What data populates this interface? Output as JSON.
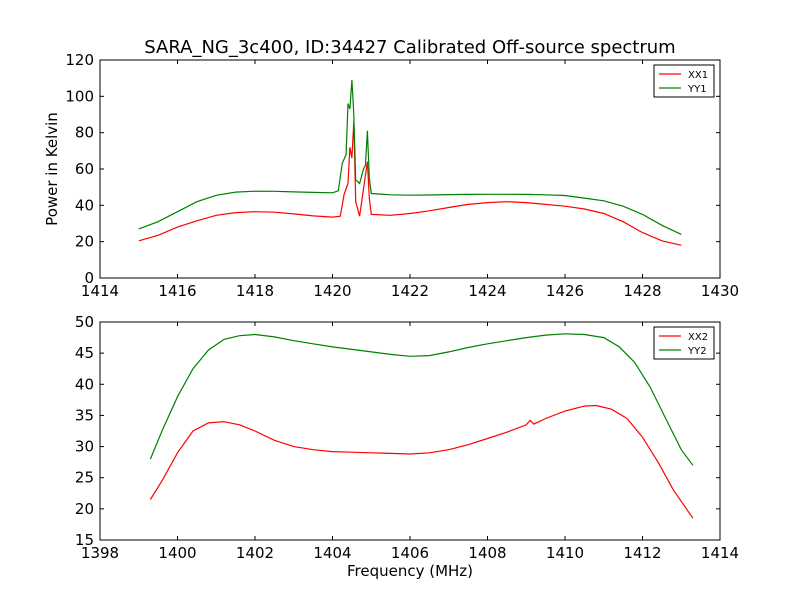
{
  "figure": {
    "title": "SARA_NG_3c400, ID:34427 Calibrated Off-source spectrum"
  },
  "chart_data": [
    {
      "type": "line",
      "title": "SARA_NG_3c400, ID:34427 Calibrated Off-source spectrum",
      "xlabel": "",
      "ylabel": "Power in Kelvin",
      "xlim": [
        1414,
        1430
      ],
      "ylim": [
        0,
        120
      ],
      "xticks": [
        1414,
        1416,
        1418,
        1420,
        1422,
        1424,
        1426,
        1428,
        1430
      ],
      "yticks": [
        0,
        20,
        40,
        60,
        80,
        100,
        120
      ],
      "grid": false,
      "legend_position": "top-right",
      "series": [
        {
          "name": "XX1",
          "color": "#ff0000",
          "points": [
            [
              1415.0,
              20.5
            ],
            [
              1415.5,
              23.5
            ],
            [
              1416.0,
              28.0
            ],
            [
              1416.5,
              31.5
            ],
            [
              1417.0,
              34.5
            ],
            [
              1417.5,
              36.0
            ],
            [
              1418.0,
              36.5
            ],
            [
              1418.5,
              36.2
            ],
            [
              1419.0,
              35.3
            ],
            [
              1419.5,
              34.2
            ],
            [
              1420.0,
              33.5
            ],
            [
              1420.2,
              34.0
            ],
            [
              1420.3,
              46.0
            ],
            [
              1420.4,
              52.0
            ],
            [
              1420.45,
              72.0
            ],
            [
              1420.5,
              66.0
            ],
            [
              1420.55,
              86.0
            ],
            [
              1420.6,
              42.0
            ],
            [
              1420.7,
              34.0
            ],
            [
              1420.8,
              49.0
            ],
            [
              1420.9,
              64.0
            ],
            [
              1420.95,
              44.0
            ],
            [
              1421.0,
              35.0
            ],
            [
              1421.5,
              34.5
            ],
            [
              1422.0,
              35.5
            ],
            [
              1422.5,
              37.0
            ],
            [
              1423.0,
              38.8
            ],
            [
              1423.5,
              40.5
            ],
            [
              1424.0,
              41.5
            ],
            [
              1424.5,
              42.0
            ],
            [
              1425.0,
              41.5
            ],
            [
              1425.5,
              40.5
            ],
            [
              1426.0,
              39.5
            ],
            [
              1426.5,
              38.0
            ],
            [
              1427.0,
              35.5
            ],
            [
              1427.5,
              31.0
            ],
            [
              1428.0,
              25.0
            ],
            [
              1428.5,
              20.5
            ],
            [
              1429.0,
              18.0
            ]
          ]
        },
        {
          "name": "YY1",
          "color": "#008000",
          "points": [
            [
              1415.0,
              27.0
            ],
            [
              1415.5,
              31.0
            ],
            [
              1416.0,
              36.5
            ],
            [
              1416.5,
              42.0
            ],
            [
              1417.0,
              45.5
            ],
            [
              1417.5,
              47.3
            ],
            [
              1418.0,
              47.8
            ],
            [
              1418.5,
              47.7
            ],
            [
              1419.0,
              47.4
            ],
            [
              1419.5,
              47.1
            ],
            [
              1420.0,
              46.9
            ],
            [
              1420.15,
              48.0
            ],
            [
              1420.25,
              63.0
            ],
            [
              1420.35,
              68.0
            ],
            [
              1420.4,
              96.0
            ],
            [
              1420.45,
              93.0
            ],
            [
              1420.5,
              109.0
            ],
            [
              1420.55,
              90.0
            ],
            [
              1420.6,
              54.0
            ],
            [
              1420.7,
              52.0
            ],
            [
              1420.8,
              60.0
            ],
            [
              1420.85,
              62.0
            ],
            [
              1420.9,
              81.0
            ],
            [
              1420.95,
              55.0
            ],
            [
              1421.0,
              46.5
            ],
            [
              1421.5,
              45.8
            ],
            [
              1422.0,
              45.6
            ],
            [
              1422.5,
              45.7
            ],
            [
              1423.0,
              45.9
            ],
            [
              1423.5,
              46.0
            ],
            [
              1424.0,
              46.1
            ],
            [
              1424.5,
              46.1
            ],
            [
              1425.0,
              46.0
            ],
            [
              1425.5,
              45.8
            ],
            [
              1426.0,
              45.4
            ],
            [
              1426.5,
              44.0
            ],
            [
              1427.0,
              42.5
            ],
            [
              1427.5,
              39.5
            ],
            [
              1428.0,
              35.0
            ],
            [
              1428.5,
              29.0
            ],
            [
              1429.0,
              24.0
            ]
          ]
        }
      ]
    },
    {
      "type": "line",
      "title": "",
      "xlabel": "Frequency (MHz)",
      "ylabel": "",
      "xlim": [
        1398,
        1414
      ],
      "ylim": [
        15,
        50
      ],
      "xticks": [
        1398,
        1400,
        1402,
        1404,
        1406,
        1408,
        1410,
        1412,
        1414
      ],
      "yticks": [
        15,
        20,
        25,
        30,
        35,
        40,
        45,
        50
      ],
      "grid": false,
      "legend_position": "top-right",
      "series": [
        {
          "name": "XX2",
          "color": "#ff0000",
          "points": [
            [
              1399.3,
              21.5
            ],
            [
              1399.6,
              24.5
            ],
            [
              1400.0,
              29.0
            ],
            [
              1400.4,
              32.5
            ],
            [
              1400.8,
              33.8
            ],
            [
              1401.2,
              34.0
            ],
            [
              1401.6,
              33.5
            ],
            [
              1402.0,
              32.5
            ],
            [
              1402.5,
              31.0
            ],
            [
              1403.0,
              30.0
            ],
            [
              1403.5,
              29.5
            ],
            [
              1404.0,
              29.2
            ],
            [
              1404.5,
              29.1
            ],
            [
              1405.0,
              29.0
            ],
            [
              1405.5,
              28.9
            ],
            [
              1406.0,
              28.8
            ],
            [
              1406.5,
              29.0
            ],
            [
              1407.0,
              29.5
            ],
            [
              1407.5,
              30.3
            ],
            [
              1408.0,
              31.3
            ],
            [
              1408.5,
              32.3
            ],
            [
              1409.0,
              33.5
            ],
            [
              1409.1,
              34.2
            ],
            [
              1409.2,
              33.6
            ],
            [
              1409.5,
              34.5
            ],
            [
              1410.0,
              35.7
            ],
            [
              1410.5,
              36.5
            ],
            [
              1410.8,
              36.6
            ],
            [
              1411.2,
              36.0
            ],
            [
              1411.6,
              34.5
            ],
            [
              1412.0,
              31.5
            ],
            [
              1412.4,
              27.5
            ],
            [
              1412.8,
              23.0
            ],
            [
              1413.3,
              18.5
            ]
          ]
        },
        {
          "name": "YY2",
          "color": "#008000",
          "points": [
            [
              1399.3,
              28.0
            ],
            [
              1399.6,
              32.5
            ],
            [
              1400.0,
              38.0
            ],
            [
              1400.4,
              42.5
            ],
            [
              1400.8,
              45.5
            ],
            [
              1401.2,
              47.2
            ],
            [
              1401.6,
              47.8
            ],
            [
              1402.0,
              48.0
            ],
            [
              1402.5,
              47.6
            ],
            [
              1403.0,
              47.0
            ],
            [
              1403.5,
              46.5
            ],
            [
              1404.0,
              46.0
            ],
            [
              1404.5,
              45.6
            ],
            [
              1405.0,
              45.2
            ],
            [
              1405.5,
              44.8
            ],
            [
              1406.0,
              44.5
            ],
            [
              1406.5,
              44.6
            ],
            [
              1407.0,
              45.2
            ],
            [
              1407.5,
              45.9
            ],
            [
              1408.0,
              46.5
            ],
            [
              1408.5,
              47.0
            ],
            [
              1409.0,
              47.5
            ],
            [
              1409.5,
              47.9
            ],
            [
              1410.0,
              48.1
            ],
            [
              1410.5,
              48.0
            ],
            [
              1411.0,
              47.5
            ],
            [
              1411.4,
              46.0
            ],
            [
              1411.8,
              43.5
            ],
            [
              1412.2,
              39.5
            ],
            [
              1412.6,
              34.5
            ],
            [
              1413.0,
              29.5
            ],
            [
              1413.3,
              27.0
            ]
          ]
        }
      ]
    }
  ]
}
